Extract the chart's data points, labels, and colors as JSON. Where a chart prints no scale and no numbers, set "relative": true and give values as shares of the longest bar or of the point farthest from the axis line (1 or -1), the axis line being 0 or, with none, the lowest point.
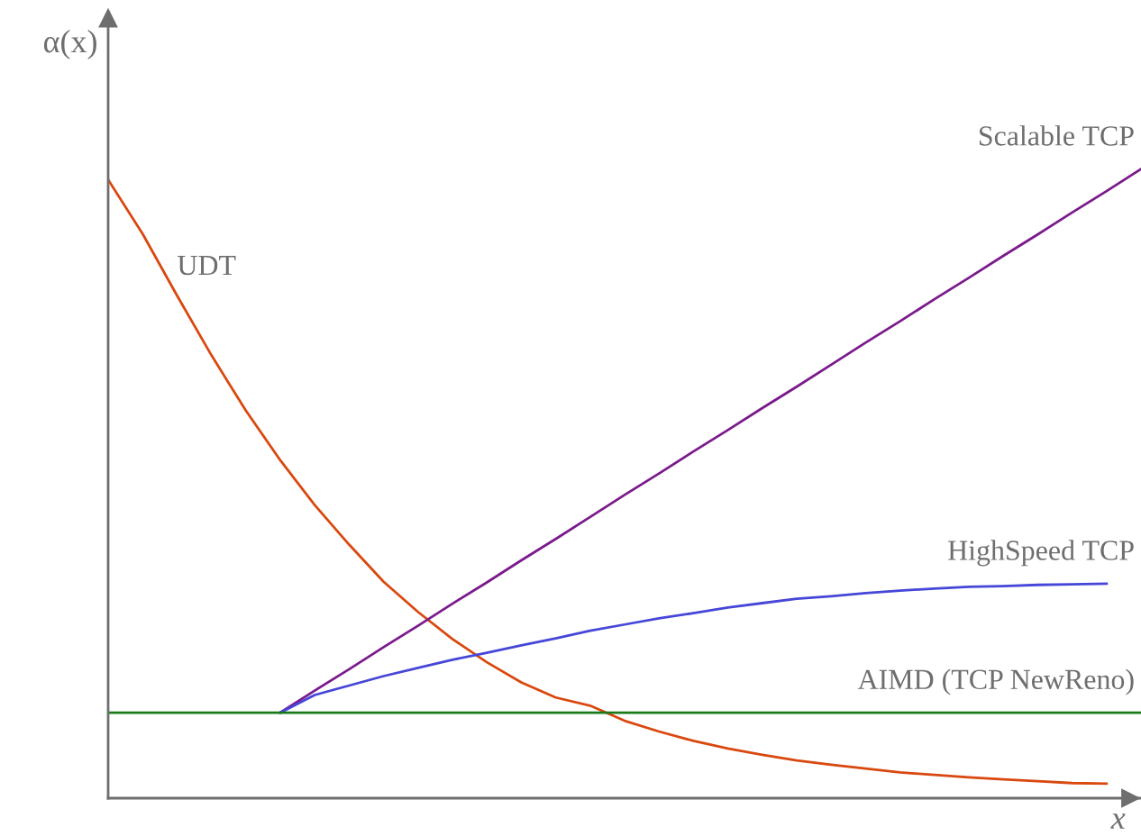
{
  "chart_data": {
    "type": "line",
    "relative": true,
    "xlabel": "x",
    "ylabel": "α(x)",
    "categories": [
      null,
      null,
      null,
      null,
      null,
      null,
      null,
      null,
      null,
      null,
      null,
      null,
      null,
      null,
      null,
      null,
      null,
      null,
      null,
      null,
      null,
      null,
      null,
      null,
      null,
      null,
      null,
      null,
      null,
      null,
      null
    ],
    "series": [
      {
        "name": "UDT",
        "color": "#d9480f",
        "values": [
          0.983,
          0.897,
          0.799,
          0.704,
          0.616,
          0.537,
          0.466,
          0.403,
          0.344,
          0.296,
          0.253,
          0.216,
          0.184,
          0.16,
          0.147,
          0.123,
          0.106,
          0.091,
          0.079,
          0.069,
          0.06,
          0.053,
          0.047,
          0.041,
          0.037,
          0.033,
          0.03,
          0.027,
          0.024,
          0.023,
          null
        ]
      },
      {
        "name": "Scalable TCP",
        "color": "#7b1a8c",
        "values": [
          null,
          null,
          null,
          null,
          null,
          0.136,
          0.171,
          0.205,
          0.24,
          0.274,
          0.309,
          0.343,
          0.378,
          0.412,
          0.447,
          0.482,
          0.516,
          0.551,
          0.585,
          0.62,
          0.654,
          0.689,
          0.724,
          0.758,
          0.793,
          0.827,
          0.862,
          0.896,
          0.931,
          0.965,
          1.0
        ]
      },
      {
        "name": "HighSpeed TCP",
        "color": "#4646d8",
        "values": [
          null,
          null,
          null,
          null,
          null,
          0.136,
          0.164,
          0.179,
          0.194,
          0.207,
          0.22,
          0.231,
          0.243,
          0.254,
          0.266,
          0.276,
          0.286,
          0.294,
          0.303,
          0.31,
          0.317,
          0.321,
          0.326,
          0.33,
          0.333,
          0.336,
          0.337,
          0.339,
          0.34,
          0.341,
          null
        ]
      },
      {
        "name": "AIMD (TCP NewReno)",
        "color": "#1a7a1a",
        "values": [
          0.136,
          0.136,
          0.136,
          0.136,
          0.136,
          0.136,
          0.136,
          0.136,
          0.136,
          0.136,
          0.136,
          0.136,
          0.136,
          0.136,
          0.136,
          0.136,
          0.136,
          0.136,
          0.136,
          0.136,
          0.136,
          0.136,
          0.136,
          0.136,
          0.136,
          0.136,
          0.136,
          0.136,
          0.136,
          0.136,
          0.136
        ]
      }
    ]
  }
}
